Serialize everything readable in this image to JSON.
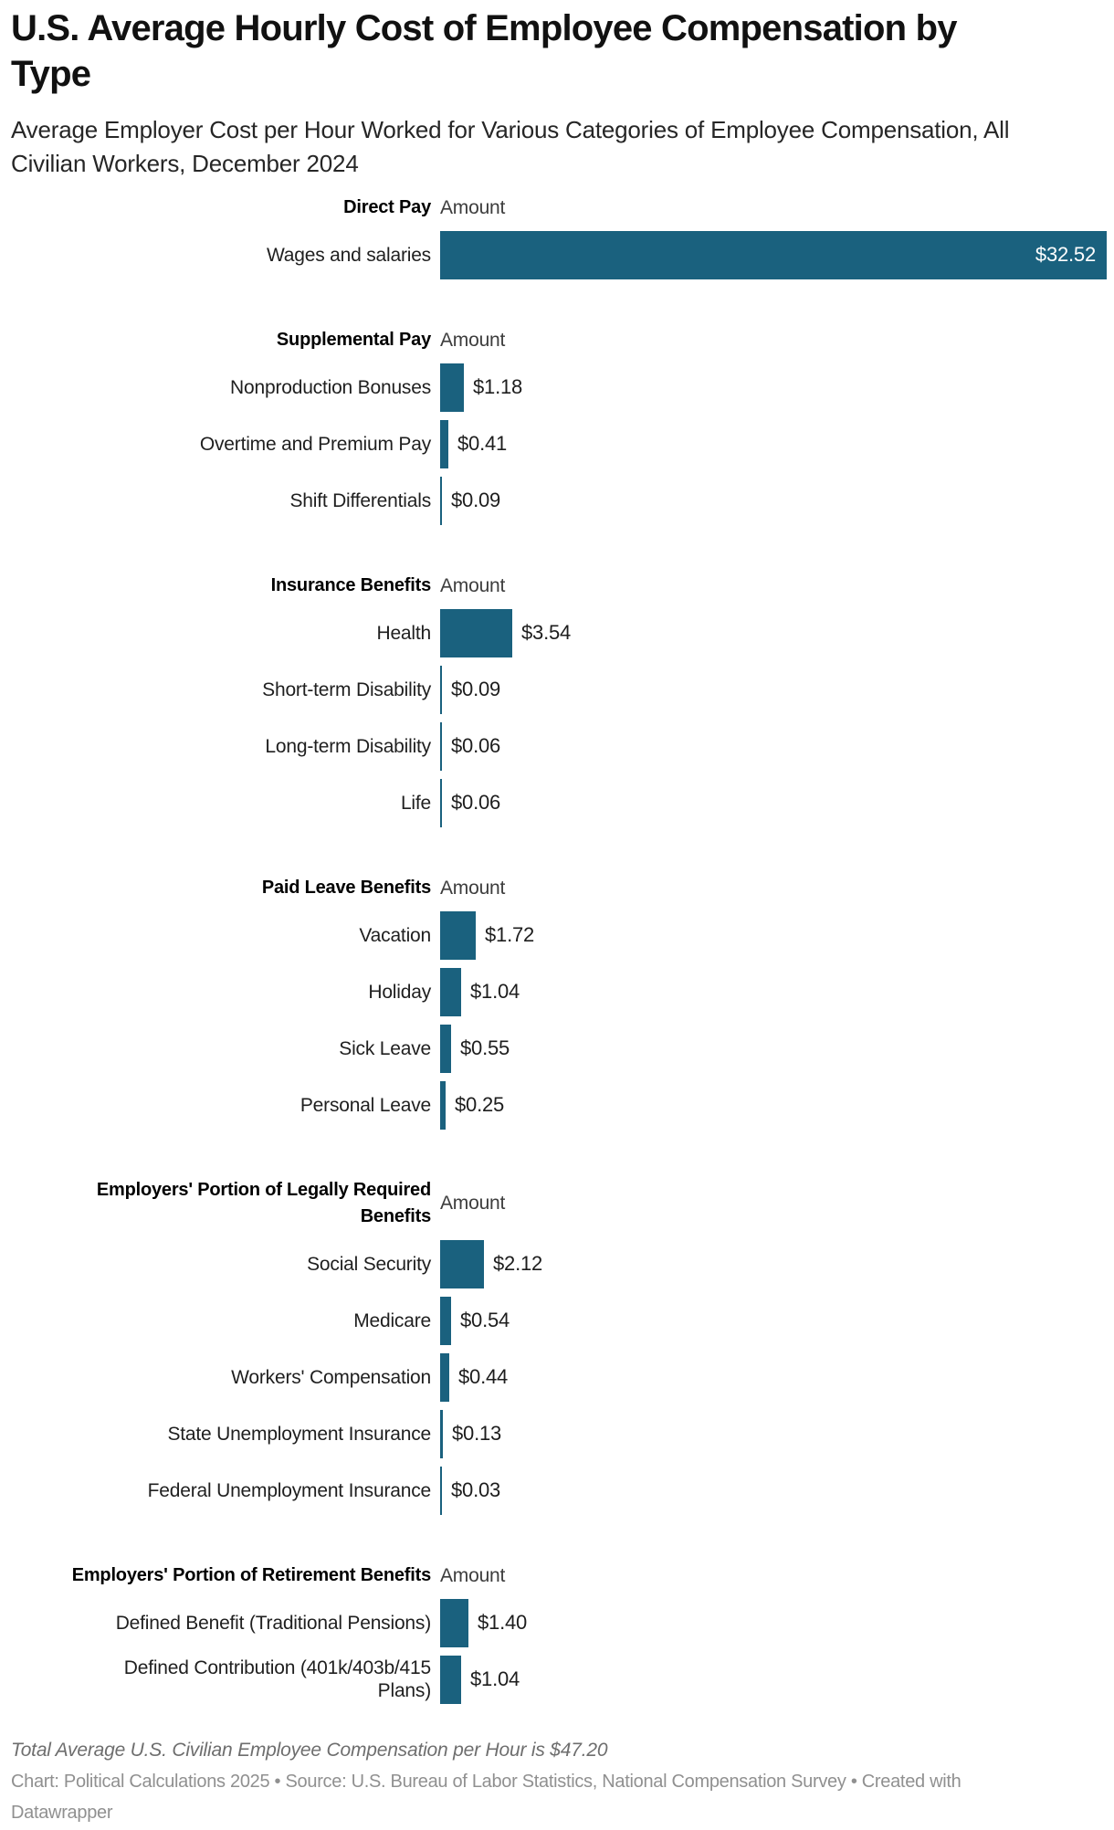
{
  "title": "U.S. Average Hourly Cost of Employee Compensation by\nType",
  "subtitle": "Average Employer Cost per Hour Worked for Various Categories of Employee Compensation, All\nCivilian Workers, December 2024",
  "chart_data": {
    "type": "bar",
    "orientation": "horizontal",
    "value_prefix": "$",
    "unit": "dollars per hour worked",
    "amount_column_label": "Amount",
    "xlim": [
      0,
      32.52
    ],
    "max_value": 32.52,
    "bar_color": "#1a617e",
    "groups": [
      {
        "label": "Direct Pay",
        "rows": [
          {
            "label": "Wages and salaries",
            "value": 32.52,
            "display": "$32.52",
            "label_inside": true
          }
        ]
      },
      {
        "label": "Supplemental Pay",
        "rows": [
          {
            "label": "Nonproduction Bonuses",
            "value": 1.18,
            "display": "$1.18"
          },
          {
            "label": "Overtime and Premium Pay",
            "value": 0.41,
            "display": "$0.41"
          },
          {
            "label": "Shift Differentials",
            "value": 0.09,
            "display": "$0.09"
          }
        ]
      },
      {
        "label": "Insurance Benefits",
        "rows": [
          {
            "label": "Health",
            "value": 3.54,
            "display": "$3.54"
          },
          {
            "label": "Short-term Disability",
            "value": 0.09,
            "display": "$0.09"
          },
          {
            "label": "Long-term Disability",
            "value": 0.06,
            "display": "$0.06"
          },
          {
            "label": "Life",
            "value": 0.06,
            "display": "$0.06"
          }
        ]
      },
      {
        "label": "Paid Leave Benefits",
        "rows": [
          {
            "label": "Vacation",
            "value": 1.72,
            "display": "$1.72"
          },
          {
            "label": "Holiday",
            "value": 1.04,
            "display": "$1.04"
          },
          {
            "label": "Sick Leave",
            "value": 0.55,
            "display": "$0.55"
          },
          {
            "label": "Personal Leave",
            "value": 0.25,
            "display": "$0.25"
          }
        ]
      },
      {
        "label": "Employers' Portion of Legally Required\nBenefits",
        "rows": [
          {
            "label": "Social Security",
            "value": 2.12,
            "display": "$2.12"
          },
          {
            "label": "Medicare",
            "value": 0.54,
            "display": "$0.54"
          },
          {
            "label": "Workers' Compensation",
            "value": 0.44,
            "display": "$0.44"
          },
          {
            "label": "State Unemployment Insurance",
            "value": 0.13,
            "display": "$0.13"
          },
          {
            "label": "Federal Unemployment Insurance",
            "value": 0.03,
            "display": "$0.03"
          }
        ]
      },
      {
        "label": "Employers' Portion of Retirement Benefits",
        "rows": [
          {
            "label": "Defined Benefit (Traditional Pensions)",
            "value": 1.4,
            "display": "$1.40"
          },
          {
            "label": "Defined Contribution (401k/403b/415\nPlans)",
            "value": 1.04,
            "display": "$1.04"
          }
        ]
      }
    ]
  },
  "footer": {
    "total_note": "Total Average U.S. Civilian Employee Compensation per Hour is $47.20",
    "attribution": "Chart: Political Calculations 2025 • Source: U.S. Bureau of Labor Statistics, National Compensation Survey • Created with\nDatawrapper"
  }
}
